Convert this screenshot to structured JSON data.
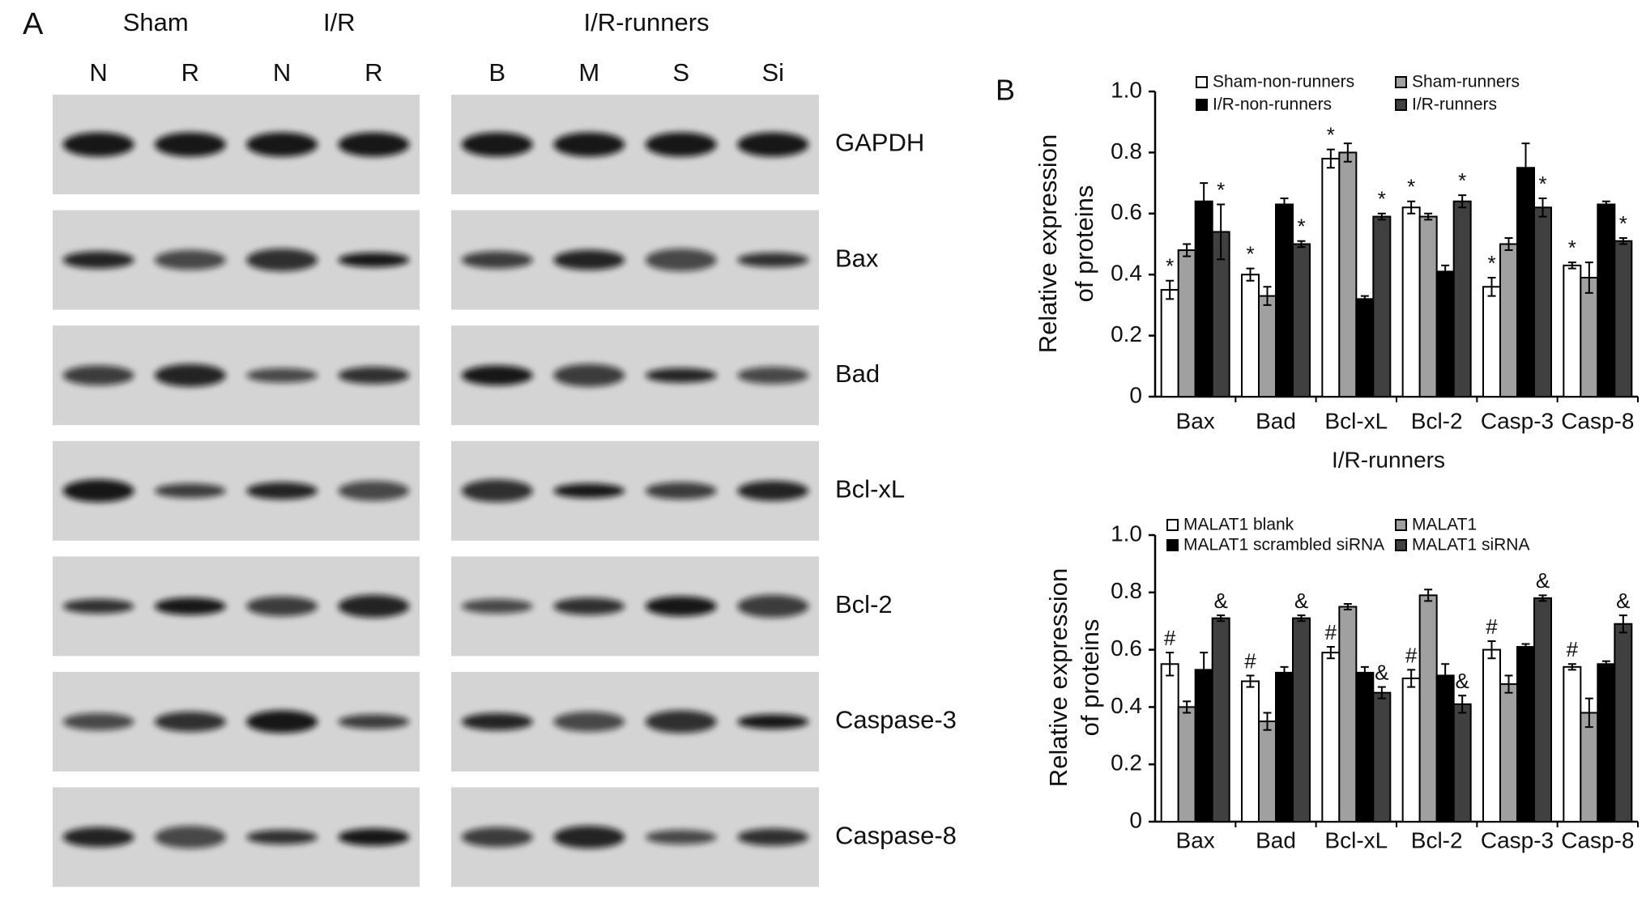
{
  "panel_a": {
    "label": "A",
    "groups": [
      "Sham",
      "I/R",
      "I/R-runners"
    ],
    "lanes": [
      "N",
      "R",
      "N",
      "R",
      "B",
      "M",
      "S",
      "Si"
    ],
    "proteins": [
      "GAPDH",
      "Bax",
      "Bad",
      "Bcl-xL",
      "Bcl-2",
      "Caspase-3",
      "Caspase-8"
    ]
  },
  "panel_b": {
    "label": "B"
  },
  "chart_data": [
    {
      "type": "bar",
      "ylabel": [
        "Relative expression",
        "of proteins"
      ],
      "categories": [
        "Bax",
        "Bad",
        "Bcl-xL",
        "Bcl-2",
        "Casp-3",
        "Casp-8"
      ],
      "ylim": [
        0,
        1
      ],
      "yticks": [
        0,
        0.2,
        0.4,
        0.6,
        0.8,
        {
          "value": 1,
          "label": "1.0"
        }
      ],
      "legend": "top",
      "series": [
        {
          "name": "Sham-non-runners",
          "color": "#ffffff",
          "values": [
            0.35,
            0.4,
            0.78,
            0.62,
            0.36,
            0.43
          ],
          "errors": [
            0.03,
            0.02,
            0.03,
            0.02,
            0.03,
            0.01
          ],
          "marks": [
            "*",
            "*",
            "*",
            "*",
            "*",
            "*"
          ]
        },
        {
          "name": "Sham-runners",
          "color": "#a0a0a0",
          "values": [
            0.48,
            0.33,
            0.8,
            0.59,
            0.5,
            0.39
          ],
          "errors": [
            0.02,
            0.03,
            0.03,
            0.01,
            0.02,
            0.05
          ]
        },
        {
          "name": "I/R-non-runners",
          "color": "#000000",
          "values": [
            0.64,
            0.63,
            0.32,
            0.41,
            0.75,
            0.63
          ],
          "errors": [
            0.06,
            0.02,
            0.01,
            0.02,
            0.08,
            0.01
          ]
        },
        {
          "name": "I/R-runners",
          "color": "#404040",
          "values": [
            0.54,
            0.5,
            0.59,
            0.64,
            0.62,
            0.51
          ],
          "errors": [
            0.09,
            0.01,
            0.01,
            0.02,
            0.03,
            0.01
          ],
          "marks": [
            "*",
            "*",
            "*",
            "*",
            "*",
            "*"
          ]
        }
      ]
    },
    {
      "type": "bar",
      "title": "I/R-runners",
      "ylabel": [
        "Relative expression",
        "of proteins"
      ],
      "categories": [
        "Bax",
        "Bad",
        "Bcl-xL",
        "Bcl-2",
        "Casp-3",
        "Casp-8"
      ],
      "ylim": [
        0,
        1
      ],
      "yticks": [
        0,
        0.2,
        0.4,
        0.6,
        0.8,
        {
          "value": 1,
          "label": "1.0"
        }
      ],
      "legend": "top",
      "series": [
        {
          "name": "MALAT1 blank",
          "color": "#ffffff",
          "values": [
            0.55,
            0.49,
            0.59,
            0.5,
            0.6,
            0.54
          ],
          "errors": [
            0.04,
            0.02,
            0.02,
            0.03,
            0.03,
            0.01
          ],
          "marks": [
            "#",
            "#",
            "#",
            "#",
            "#",
            "#"
          ]
        },
        {
          "name": "MALAT1",
          "color": "#a0a0a0",
          "values": [
            0.4,
            0.35,
            0.75,
            0.79,
            0.48,
            0.38
          ],
          "errors": [
            0.02,
            0.03,
            0.01,
            0.02,
            0.03,
            0.05
          ]
        },
        {
          "name": "MALAT1 scrambled siRNA",
          "color": "#000000",
          "values": [
            0.53,
            0.52,
            0.52,
            0.51,
            0.61,
            0.55
          ],
          "errors": [
            0.06,
            0.02,
            0.02,
            0.04,
            0.01,
            0.01
          ]
        },
        {
          "name": "MALAT1 siRNA",
          "color": "#404040",
          "values": [
            0.71,
            0.71,
            0.45,
            0.41,
            0.78,
            0.69
          ],
          "errors": [
            0.01,
            0.01,
            0.02,
            0.03,
            0.01,
            0.03
          ],
          "marks": [
            "&",
            "&",
            "&",
            "&",
            "&",
            "&"
          ]
        }
      ]
    }
  ]
}
